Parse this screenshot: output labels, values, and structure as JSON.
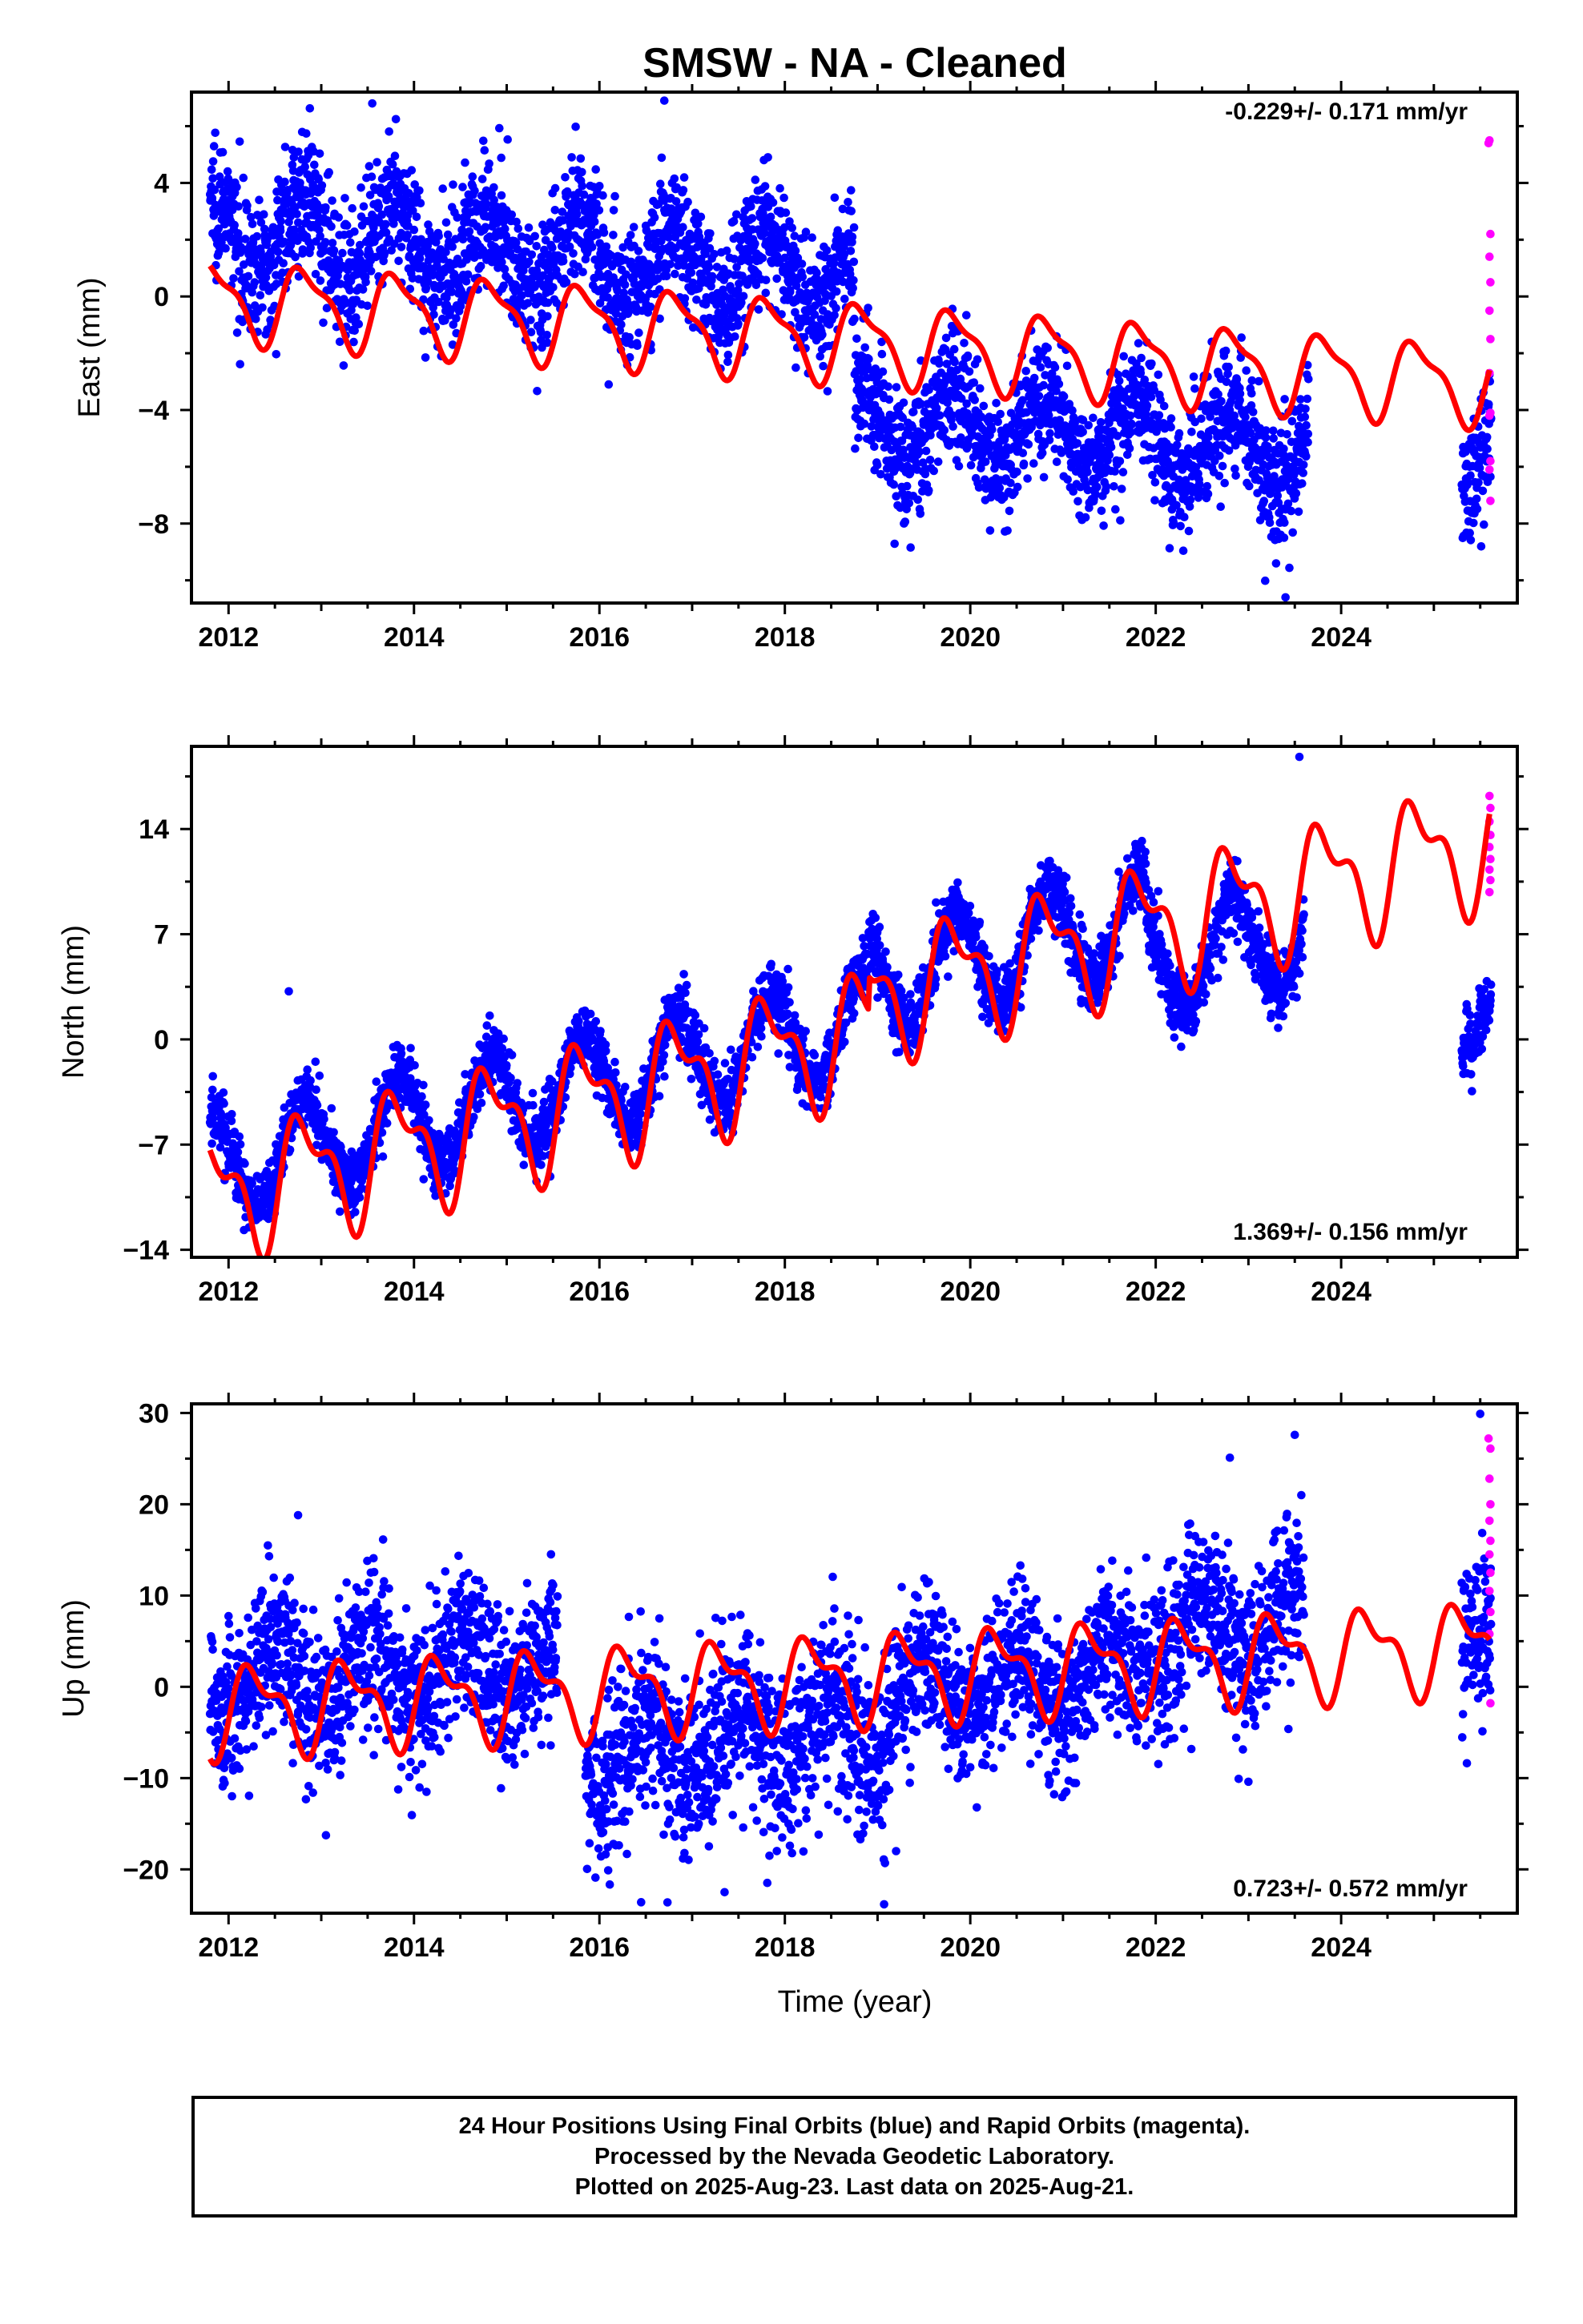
{
  "figure": {
    "title": "SMSW  - NA - Cleaned",
    "x_label": "Time (year)",
    "caption": [
      "24 Hour Positions Using Final Orbits (blue) and Rapid Orbits (magenta).",
      "Processed by the Nevada Geodetic Laboratory.",
      "Plotted on 2025-Aug-23. Last data on 2025-Aug-21."
    ]
  },
  "colors": {
    "final": "#0000ff",
    "rapid": "#ff00ff",
    "model": "#ff0000",
    "frame": "#000000"
  },
  "chart_data": [
    {
      "type": "scatter",
      "ylabel": "East (mm)",
      "rate_text": "-0.229+/- 0.171 mm/yr",
      "xlim": [
        2011.6,
        2025.9
      ],
      "ylim": [
        -10.8,
        7.2
      ],
      "x_ticks": [
        2012,
        2014,
        2016,
        2018,
        2020,
        2022,
        2024
      ],
      "y_ticks": [
        -8,
        -4,
        0,
        4
      ],
      "grid": false,
      "series": [
        {
          "name": "Final Orbits (blue)",
          "kind": "points",
          "segments": [
            {
              "start": 2011.8,
              "end": 2018.75,
              "offset": 2.3,
              "trend": -0.229,
              "amp": 1.3,
              "phase": 0.55,
              "noise": 1.15
            },
            {
              "start": 2018.75,
              "end": 2021.9,
              "offset": -4.3,
              "trend": -0.229,
              "amp": 1.3,
              "phase": 0.55,
              "noise": 1.1
            },
            {
              "start": 2021.9,
              "end": 2023.65,
              "offset": -5.0,
              "trend": -0.229,
              "amp": 1.3,
              "phase": 0.55,
              "noise": 1.15
            },
            {
              "start": 2025.3,
              "end": 2025.62,
              "offset": -5.2,
              "trend": -0.229,
              "amp": 1.5,
              "phase": 0.55,
              "noise": 1.2
            }
          ],
          "outliers": [
            [
              2013.55,
              6.8
            ],
            [
              2016.7,
              6.9
            ],
            [
              2023.4,
              -10.6
            ],
            [
              2016.1,
              -3.1
            ]
          ]
        },
        {
          "name": "Rapid Orbits (magenta)",
          "kind": "points",
          "points": [
            [
              2025.59,
              5.4
            ],
            [
              2025.6,
              5.5
            ],
            [
              2025.61,
              2.2
            ],
            [
              2025.6,
              1.4
            ],
            [
              2025.61,
              0.5
            ],
            [
              2025.6,
              -0.5
            ],
            [
              2025.61,
              -1.5
            ],
            [
              2025.6,
              -2.7
            ],
            [
              2025.61,
              -4.1
            ],
            [
              2025.6,
              -4.2
            ],
            [
              2025.61,
              -5.8
            ],
            [
              2025.6,
              -6.1
            ],
            [
              2025.61,
              -7.2
            ]
          ]
        },
        {
          "name": "model",
          "kind": "line",
          "base": [
            [
              2011.8,
              -0.1
            ],
            [
              2018.8,
              -1.6
            ],
            [
              2025.6,
              -3.1
            ]
          ],
          "amp": 1.3,
          "phase": 0.58,
          "harm2": 0.35,
          "steps": []
        }
      ]
    },
    {
      "type": "scatter",
      "ylabel": "North (mm)",
      "rate_text": "1.369+/- 0.156 mm/yr",
      "xlim": [
        2011.6,
        2025.9
      ],
      "ylim": [
        -14.5,
        19.5
      ],
      "x_ticks": [
        2012,
        2014,
        2016,
        2018,
        2020,
        2022,
        2024
      ],
      "y_ticks": [
        -14,
        -7,
        0,
        7,
        14
      ],
      "grid": false,
      "series": [
        {
          "name": "Final Orbits (blue)",
          "kind": "points",
          "segments": [
            {
              "start": 2011.8,
              "end": 2018.9,
              "offset": -8.5,
              "trend": 1.369,
              "amp": 3.2,
              "phase": 0.58,
              "noise": 1.1
            },
            {
              "start": 2018.9,
              "end": 2021.9,
              "offset": 3.8,
              "trend": 1.369,
              "amp": 3.4,
              "phase": 0.58,
              "noise": 1.1
            },
            {
              "start": 2021.9,
              "end": 2023.6,
              "offset": 4.7,
              "trend": 1.369,
              "amp": 3.4,
              "phase": 0.58,
              "noise": 1.1
            },
            {
              "start": 2025.3,
              "end": 2025.62,
              "offset": 1.8,
              "trend": 1.369,
              "amp": 2.5,
              "phase": 0.58,
              "noise": 1.0
            }
          ],
          "outliers": [
            [
              2012.65,
              3.2
            ],
            [
              2023.55,
              18.8
            ]
          ]
        },
        {
          "name": "Rapid Orbits (magenta)",
          "kind": "points",
          "points": [
            [
              2025.6,
              16.2
            ],
            [
              2025.61,
              15.4
            ],
            [
              2025.6,
              14.5
            ],
            [
              2025.61,
              13.6
            ],
            [
              2025.6,
              12.8
            ],
            [
              2025.61,
              12.0
            ],
            [
              2025.6,
              11.3
            ],
            [
              2025.61,
              10.6
            ],
            [
              2025.6,
              9.8
            ]
          ]
        },
        {
          "name": "model",
          "kind": "line",
          "base": [
            [
              2011.8,
              -10.5
            ],
            [
              2025.6,
              11.0
            ]
          ],
          "amp": 3.6,
          "phase": 0.58,
          "harm2": 0.5,
          "steps": [
            [
              2018.9,
              2.2
            ]
          ]
        }
      ]
    },
    {
      "type": "scatter",
      "ylabel": "Up (mm)",
      "rate_text": "0.723+/- 0.572 mm/yr",
      "xlim": [
        2011.6,
        2025.9
      ],
      "ylim": [
        -24.8,
        31.0
      ],
      "x_ticks": [
        2012,
        2014,
        2016,
        2018,
        2020,
        2022,
        2024
      ],
      "y_ticks": [
        -20,
        -10,
        0,
        10,
        20,
        30
      ],
      "grid": false,
      "series": [
        {
          "name": "Final Orbits (blue)",
          "kind": "points",
          "segments": [
            {
              "start": 2011.8,
              "end": 2015.55,
              "offset": 0.8,
              "trend": 0.4,
              "amp": 3.5,
              "phase": 0.25,
              "noise": 4.3
            },
            {
              "start": 2015.85,
              "end": 2019.1,
              "offset": -7.5,
              "trend": 0.9,
              "amp": 3.5,
              "phase": 0.25,
              "noise": 4.8
            },
            {
              "start": 2019.1,
              "end": 2021.85,
              "offset": -0.8,
              "trend": 0.9,
              "amp": 3.5,
              "phase": 0.25,
              "noise": 4.0
            },
            {
              "start": 2021.85,
              "end": 2023.6,
              "offset": 5.5,
              "trend": 1.0,
              "amp": 3.5,
              "phase": 0.25,
              "noise": 4.2
            },
            {
              "start": 2025.3,
              "end": 2025.62,
              "offset": 3.5,
              "trend": 0.5,
              "amp": 3.0,
              "phase": 0.25,
              "noise": 5.0
            }
          ],
          "outliers": [
            [
              2012.75,
              18.8
            ],
            [
              2016.45,
              -23.6
            ],
            [
              2017.35,
              -22.5
            ],
            [
              2022.8,
              25.1
            ],
            [
              2023.5,
              27.6
            ],
            [
              2025.5,
              29.9
            ],
            [
              2019.2,
              -18.0
            ],
            [
              2023.0,
              -10.4
            ]
          ]
        },
        {
          "name": "Rapid Orbits (magenta)",
          "kind": "points",
          "points": [
            [
              2025.59,
              27.2
            ],
            [
              2025.61,
              26.1
            ],
            [
              2025.6,
              22.8
            ],
            [
              2025.61,
              20.0
            ],
            [
              2025.6,
              18.2
            ],
            [
              2025.61,
              16.0
            ],
            [
              2025.6,
              14.5
            ],
            [
              2025.61,
              12.5
            ],
            [
              2025.6,
              10.5
            ],
            [
              2025.61,
              8.2
            ],
            [
              2025.6,
              5.8
            ],
            [
              2025.61,
              -1.8
            ]
          ]
        },
        {
          "name": "model",
          "kind": "line",
          "base": [
            [
              2011.8,
              -2.5
            ],
            [
              2025.6,
              4.5
            ]
          ],
          "amp": 4.2,
          "phase": 0.05,
          "harm2": 0.5,
          "steps": []
        }
      ]
    }
  ]
}
